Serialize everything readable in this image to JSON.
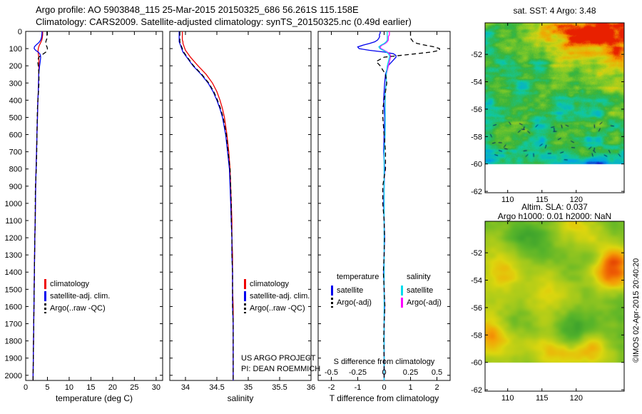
{
  "header": {
    "line1": "Argo profile: AO 5903848_115 25-Mar-2015 20150325_686 56.261S 115.158E",
    "line2": "Climatology: CARS2009. Satellite-adjusted climatology: synTS_20150325.nc (0.49d earlier)"
  },
  "annotations": {
    "us_argo_project": "US ARGO PROJECT",
    "pi": "PI: DEAN ROEMMICH"
  },
  "watermark": "©IMOS 02-Apr-2015 20:40:20",
  "chart_data": [
    {
      "id": "temperature_profile",
      "type": "line",
      "xlabel": "temperature (deg C)",
      "xlim": [
        0,
        31.5
      ],
      "xticks": [
        0,
        5,
        10,
        15,
        20,
        25,
        30
      ],
      "ylim": [
        0,
        2030
      ],
      "yticks": [
        0,
        100,
        200,
        300,
        400,
        500,
        600,
        700,
        800,
        900,
        1000,
        1100,
        1200,
        1300,
        1400,
        1500,
        1600,
        1700,
        1800,
        1900,
        2000
      ],
      "show_ytick_labels": true,
      "depths": [
        0,
        10,
        20,
        30,
        40,
        50,
        60,
        70,
        80,
        90,
        100,
        110,
        120,
        130,
        140,
        150,
        175,
        200,
        250,
        300,
        350,
        400,
        450,
        500,
        600,
        700,
        800,
        900,
        1000,
        1100,
        1200,
        1300,
        1400,
        1500,
        1600,
        1700,
        1800,
        1900,
        2000,
        2030
      ],
      "series": [
        {
          "name": "climatology",
          "color": "#ee0000",
          "dash": false,
          "values": [
            3.9,
            3.9,
            3.9,
            3.85,
            3.8,
            3.7,
            3.55,
            3.35,
            3.15,
            3.0,
            2.9,
            2.85,
            2.85,
            2.9,
            2.95,
            3.0,
            3.05,
            3.05,
            3.0,
            2.95,
            2.9,
            2.8,
            2.75,
            2.7,
            2.6,
            2.5,
            2.4,
            2.3,
            2.25,
            2.2,
            2.1,
            2.05,
            2.0,
            1.95,
            1.9,
            1.85,
            1.8,
            1.75,
            1.7,
            1.7
          ]
        },
        {
          "name": "satellite-adj. clim.",
          "color": "#0000ee",
          "dash": false,
          "values": [
            3.75,
            3.75,
            3.72,
            3.68,
            3.6,
            3.45,
            3.2,
            2.8,
            2.35,
            2.0,
            1.95,
            2.3,
            2.85,
            3.25,
            3.4,
            3.45,
            3.35,
            3.2,
            3.0,
            2.95,
            2.9,
            2.8,
            2.75,
            2.7,
            2.6,
            2.5,
            2.4,
            2.3,
            2.25,
            2.2,
            2.1,
            2.05,
            2.0,
            1.95,
            1.9,
            1.85,
            1.8,
            1.75,
            1.7,
            1.7
          ]
        },
        {
          "name": "Argo(..raw -QC)",
          "color": "#000000",
          "dash": true,
          "values": [
            4.9,
            4.9,
            4.9,
            4.9,
            4.9,
            4.75,
            4.65,
            4.6,
            4.7,
            4.9,
            5.0,
            4.95,
            4.65,
            4.1,
            3.55,
            3.0,
            2.75,
            2.9,
            3.05,
            3.05,
            2.95,
            2.8,
            2.7,
            2.65,
            2.6,
            2.55,
            2.45,
            2.25,
            2.2,
            2.2,
            2.1,
            2.05,
            2.0,
            1.95,
            1.9,
            1.85,
            1.8,
            1.75,
            1.7,
            1.7
          ]
        }
      ]
    },
    {
      "id": "salinity_profile",
      "type": "line",
      "xlabel": "salinity",
      "xlim": [
        33.75,
        36.0
      ],
      "xticks": [
        34,
        34.5,
        35,
        35.5,
        36
      ],
      "ylim": [
        0,
        2030
      ],
      "yticks": [
        0,
        100,
        200,
        300,
        400,
        500,
        600,
        700,
        800,
        900,
        1000,
        1100,
        1200,
        1300,
        1400,
        1500,
        1600,
        1700,
        1800,
        1900,
        2000
      ],
      "show_ytick_labels": false,
      "depths": [
        0,
        10,
        20,
        30,
        40,
        50,
        60,
        70,
        80,
        90,
        100,
        110,
        120,
        130,
        140,
        150,
        175,
        200,
        250,
        300,
        350,
        400,
        450,
        500,
        600,
        700,
        800,
        900,
        1000,
        1100,
        1200,
        1300,
        1400,
        1500,
        1600,
        1700,
        1800,
        1900,
        2000,
        2030
      ],
      "series": [
        {
          "name": "climatology",
          "color": "#ee0000",
          "dash": false,
          "values": [
            33.95,
            33.95,
            33.95,
            33.95,
            33.95,
            33.95,
            33.96,
            33.96,
            33.97,
            33.98,
            33.99,
            34.0,
            34.02,
            34.04,
            34.06,
            34.08,
            34.14,
            34.2,
            34.33,
            34.43,
            34.5,
            34.55,
            34.59,
            34.62,
            34.66,
            34.69,
            34.71,
            34.72,
            34.73,
            34.74,
            34.74,
            34.75,
            34.75,
            34.75,
            34.76,
            34.76,
            34.76,
            34.76,
            34.76,
            34.76
          ]
        },
        {
          "name": "satellite-adj. clim.",
          "color": "#0000ee",
          "dash": false,
          "values": [
            33.9,
            33.9,
            33.9,
            33.9,
            33.9,
            33.9,
            33.9,
            33.91,
            33.92,
            33.93,
            33.94,
            33.95,
            33.96,
            33.98,
            34.0,
            34.02,
            34.07,
            34.12,
            34.25,
            34.36,
            34.44,
            34.5,
            34.55,
            34.59,
            34.64,
            34.67,
            34.7,
            34.71,
            34.72,
            34.73,
            34.74,
            34.74,
            34.75,
            34.75,
            34.75,
            34.76,
            34.76,
            34.76,
            34.76,
            34.76
          ]
        },
        {
          "name": "Argo(..raw -QC)",
          "color": "#000000",
          "dash": true,
          "values": [
            33.91,
            33.91,
            33.91,
            33.91,
            33.91,
            33.91,
            33.91,
            33.92,
            33.93,
            33.94,
            33.95,
            33.96,
            33.97,
            33.99,
            34.01,
            34.03,
            34.08,
            34.13,
            34.26,
            34.37,
            34.45,
            34.51,
            34.56,
            34.6,
            34.65,
            34.68,
            34.71,
            34.72,
            34.73,
            34.73,
            34.74,
            34.74,
            34.75,
            34.75,
            34.75,
            34.76,
            34.76,
            34.76,
            34.76,
            34.76
          ]
        }
      ]
    },
    {
      "id": "difference_profile",
      "type": "line",
      "xlabel": "T difference from climatology",
      "s_label": "S difference from climatology",
      "xlim": [
        -2.5,
        2.5
      ],
      "xticks": [
        -2,
        -1,
        0,
        1,
        2
      ],
      "s_ticks": [
        -0.5,
        -0.25,
        0,
        0.25,
        0.5
      ],
      "s_to_x": 4,
      "ylim": [
        0,
        2030
      ],
      "yticks": [
        0,
        100,
        200,
        300,
        400,
        500,
        600,
        700,
        800,
        900,
        1000,
        1100,
        1200,
        1300,
        1400,
        1500,
        1600,
        1700,
        1800,
        1900,
        2000
      ],
      "show_ytick_labels": false,
      "depths": [
        0,
        10,
        20,
        30,
        40,
        50,
        60,
        70,
        80,
        90,
        100,
        110,
        120,
        130,
        140,
        150,
        175,
        200,
        250,
        300,
        350,
        400,
        450,
        500,
        600,
        700,
        800,
        900,
        1000,
        1100,
        1200,
        1300,
        1400,
        1500,
        1600,
        1700,
        1800,
        1900,
        2000,
        2030
      ],
      "series": [
        {
          "name": "satellite",
          "group": "temperature",
          "axis": "t",
          "color": "#0000ee",
          "dash": false,
          "values": [
            -0.15,
            -0.15,
            -0.18,
            -0.17,
            -0.2,
            -0.25,
            -0.35,
            -0.55,
            -0.8,
            -1.0,
            -0.95,
            -0.55,
            0.0,
            0.35,
            0.45,
            0.45,
            0.3,
            0.15,
            0.05,
            0.02,
            0.0,
            -0.02,
            0.0,
            0.02,
            0.0,
            -0.02,
            0.02,
            0.0,
            -0.02,
            0.0,
            0.02,
            0.0,
            -0.02,
            0.0,
            0.02,
            0.0,
            0.0,
            0.0,
            0.0,
            0.0
          ]
        },
        {
          "name": "Argo(-adj)",
          "group": "salinity",
          "axis": "s",
          "color": "#ff00ff",
          "dash": false,
          "values": [
            0.05,
            0.05,
            0.05,
            0.04,
            0.04,
            0.04,
            0.03,
            0.01,
            -0.02,
            -0.04,
            -0.03,
            0.0,
            0.03,
            0.05,
            0.06,
            0.06,
            0.05,
            0.04,
            0.02,
            0.02,
            0.01,
            0.01,
            0.01,
            0.01,
            0.01,
            0.0,
            0.0,
            0.0,
            0.0,
            0.0,
            0.0,
            0.0,
            0.0,
            0.0,
            0.0,
            0.0,
            0.0,
            0.0,
            0.0,
            0.0
          ]
        },
        {
          "name": "satellite",
          "group": "salinity",
          "axis": "s",
          "color": "#00dcec",
          "dash": false,
          "values": [
            0.03,
            0.03,
            0.03,
            0.03,
            0.03,
            0.03,
            0.02,
            0.0,
            -0.03,
            -0.05,
            -0.04,
            -0.01,
            0.02,
            0.04,
            0.05,
            0.05,
            0.04,
            0.03,
            0.02,
            0.02,
            0.01,
            0.01,
            0.01,
            0.01,
            0.01,
            0.0,
            0.0,
            0.0,
            0.0,
            0.0,
            0.0,
            0.0,
            0.0,
            0.0,
            0.0,
            0.0,
            0.0,
            0.0,
            0.0,
            0.0
          ]
        },
        {
          "name": "Argo(-adj)",
          "group": "temperature",
          "axis": "t",
          "color": "#000000",
          "dash": true,
          "values": [
            1.0,
            1.0,
            1.0,
            1.0,
            1.0,
            1.05,
            1.1,
            1.25,
            1.55,
            1.9,
            2.1,
            2.1,
            1.8,
            1.2,
            0.6,
            0.0,
            -0.3,
            -0.15,
            0.05,
            0.1,
            0.05,
            0.0,
            -0.05,
            -0.05,
            0.0,
            0.05,
            0.05,
            -0.05,
            -0.05,
            0.0,
            0.02,
            0.0,
            -0.03,
            0.0,
            0.03,
            0.0,
            -0.02,
            0.0,
            0.0,
            0.0
          ]
        }
      ],
      "legend_columns": [
        {
          "header": "temperature",
          "items": [
            {
              "label": "satellite",
              "color": "#0000ee",
              "dash": false
            },
            {
              "label": "Argo(-adj)",
              "color": "#000000",
              "dash": true
            }
          ]
        },
        {
          "header": "salinity",
          "items": [
            {
              "label": "satellite",
              "color": "#00dcec",
              "dash": false
            },
            {
              "label": "Argo(-adj)",
              "color": "#ff00ff",
              "dash": false
            }
          ]
        }
      ]
    },
    {
      "id": "sst_map",
      "type": "heatmap",
      "title": "sat. SST: 4 Argo: 3.48",
      "xticks": [
        110,
        115,
        120
      ],
      "yticks": [
        -52,
        -54,
        -56,
        -58,
        -60,
        -62
      ],
      "lon_range": [
        106.7,
        127.0
      ],
      "lat_range": [
        -49.7,
        -62.1
      ],
      "data_lat_limit": -60,
      "palette": [
        "#1020c8",
        "#00a0e8",
        "#10c8a0",
        "#38b43c",
        "#84ca28",
        "#d2d212",
        "#f5a000",
        "#e82000"
      ],
      "description": "satellite SST field: green background, cyan patches, warm orange-red band along north-east, dark current-vector marks near 58-60S, blank south of 60S"
    },
    {
      "id": "sla_map",
      "type": "heatmap",
      "title_line1": "Altim. SLA: 0.037",
      "title_line2": "Argo h1000: 0.01 h2000: NaN",
      "xticks": [
        110,
        115,
        120
      ],
      "yticks": [
        -52,
        -54,
        -56,
        -58,
        -60,
        -62
      ],
      "lon_range": [
        106.7,
        127.0
      ],
      "lat_range": [
        -49.7,
        -62.1
      ],
      "data_lat_limit": -60,
      "palette": [
        "#0c6d26",
        "#2f9a2e",
        "#57b42a",
        "#9cc81e",
        "#ddd60e",
        "#f4a306",
        "#ef5f04",
        "#d01802"
      ],
      "description": "altimetric sea-level anomaly field: green/yellow blobs, strong red anomaly near 121E 53.5S, orange patches lower-left and bottom, blank south of 60S"
    }
  ]
}
